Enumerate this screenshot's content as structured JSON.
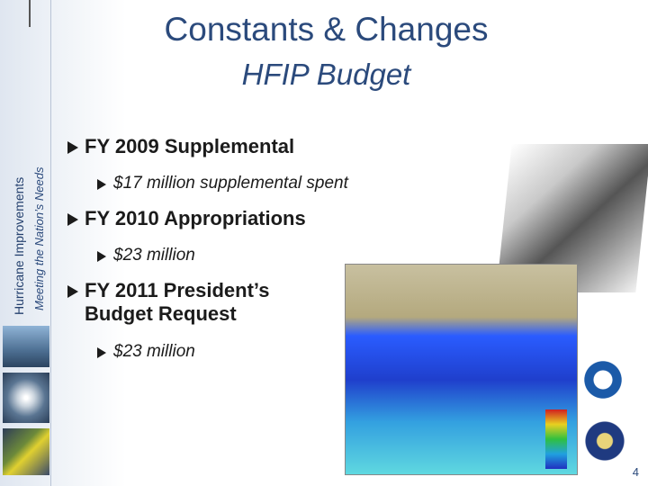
{
  "header": {
    "title": "Constants & Changes",
    "subtitle": "HFIP Budget"
  },
  "sidebar": {
    "title": "Hurricane Improvements",
    "tagline": "Meeting the Nation’s Needs"
  },
  "bullets": [
    {
      "text": "FY 2009 Supplemental",
      "sub": [
        "$17 million supplemental spent"
      ]
    },
    {
      "text": "FY 2010 Appropriations",
      "sub": [
        "$23 million"
      ]
    },
    {
      "text": "FY 2011 President’s Budget Request",
      "sub": [
        "$23 million"
      ]
    }
  ],
  "page_number": "4"
}
